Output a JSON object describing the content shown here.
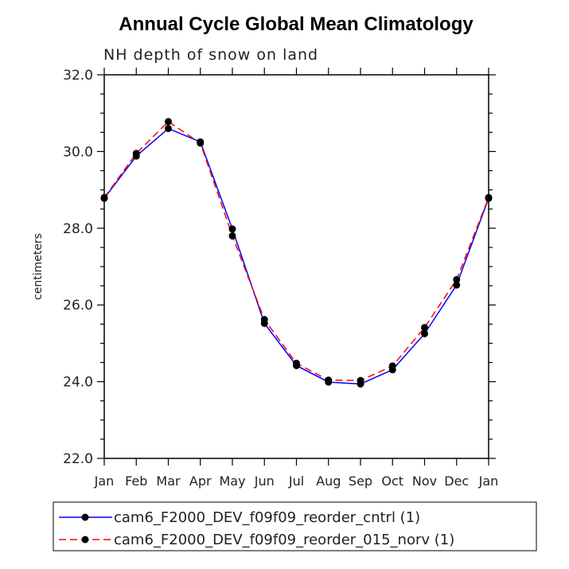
{
  "chart_data": {
    "type": "line",
    "title": "Annual Cycle Global Mean Climatology",
    "subtitle": "NH depth of snow on land",
    "xlabel": "",
    "ylabel": "centimeters",
    "categories": [
      "Jan",
      "Feb",
      "Mar",
      "Apr",
      "May",
      "Jun",
      "Jul",
      "Aug",
      "Sep",
      "Oct",
      "Nov",
      "Dec",
      "Jan"
    ],
    "ylim": [
      22.0,
      32.0
    ],
    "yticks": [
      "22.0",
      "24.0",
      "26.0",
      "28.0",
      "30.0",
      "32.0"
    ],
    "grid": false,
    "legend_position": "bottom",
    "series": [
      {
        "name": "cam6_F2000_DEV_f09f09_reorder_cntrl (1)",
        "color": "#0000ff",
        "dash": "solid",
        "values": [
          28.78,
          29.88,
          30.6,
          30.25,
          27.98,
          25.52,
          24.42,
          23.99,
          23.94,
          24.31,
          25.25,
          26.52,
          28.78
        ]
      },
      {
        "name": "cam6_F2000_DEV_f09f09_reorder_015_norv (1)",
        "color": "#ff0000",
        "dash": "dashed",
        "values": [
          28.8,
          29.95,
          30.78,
          30.22,
          27.8,
          25.62,
          24.48,
          24.04,
          24.03,
          24.41,
          25.41,
          26.66,
          28.8
        ]
      }
    ]
  }
}
